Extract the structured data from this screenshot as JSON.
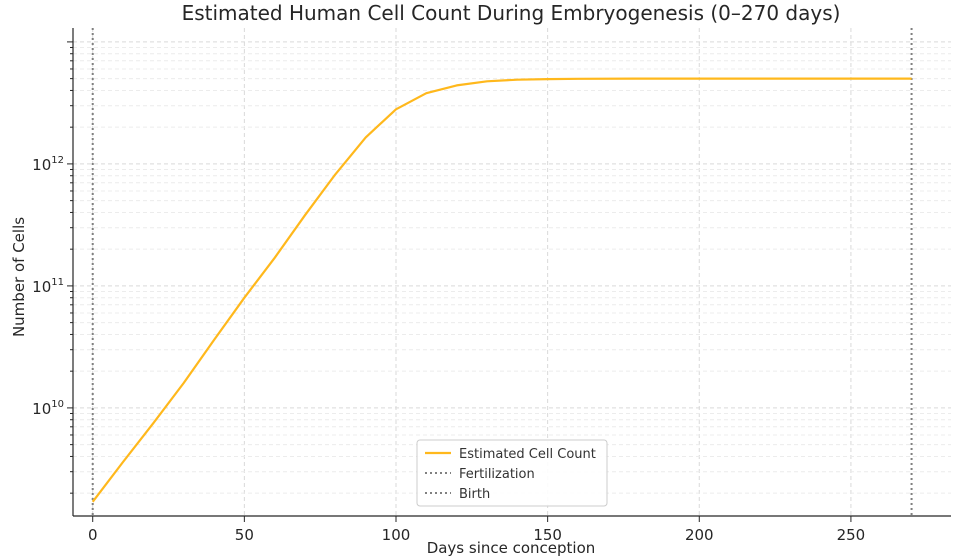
{
  "chart_data": {
    "type": "line",
    "title": "Estimated Human Cell Count During Embryogenesis (0–270 days)",
    "xlabel": "Days since conception",
    "ylabel": "Number of Cells",
    "xlim": [
      -6.5,
      283
    ],
    "ylim": [
      1300000000.0,
      13000000000000.0
    ],
    "yscale": "log",
    "grid": true,
    "x_ticks": [
      0,
      50,
      100,
      150,
      200,
      250
    ],
    "y_ticks": [
      {
        "base": "10",
        "exp": "10"
      },
      {
        "base": "10",
        "exp": "11"
      },
      {
        "base": "10",
        "exp": "12"
      }
    ],
    "series": [
      {
        "name": "Estimated Cell Count",
        "color": "#FFB81C",
        "x": [
          0,
          10,
          20,
          30,
          40,
          50,
          60,
          70,
          80,
          90,
          100,
          110,
          120,
          130,
          140,
          150,
          160,
          180,
          200,
          220,
          240,
          270
        ],
        "y": [
          1700000000.0,
          3600000000.0,
          7500000000.0,
          16000000000.0,
          36000000000.0,
          80000000000.0,
          170000000000.0,
          380000000000.0,
          820000000000.0,
          1650000000000.0,
          2800000000000.0,
          3800000000000.0,
          4400000000000.0,
          4750000000000.0,
          4900000000000.0,
          4960000000000.0,
          4980000000000.0,
          5000000000000.0,
          5000000000000.0,
          5000000000000.0,
          5000000000000.0,
          5000000000000.0
        ]
      }
    ],
    "vlines": [
      {
        "name": "Fertilization",
        "x": 0,
        "color": "#808080"
      },
      {
        "name": "Birth",
        "x": 270,
        "color": "#808080"
      }
    ],
    "legend": {
      "position": "bottom-center",
      "entries": [
        "Estimated Cell Count",
        "Fertilization",
        "Birth"
      ]
    }
  }
}
